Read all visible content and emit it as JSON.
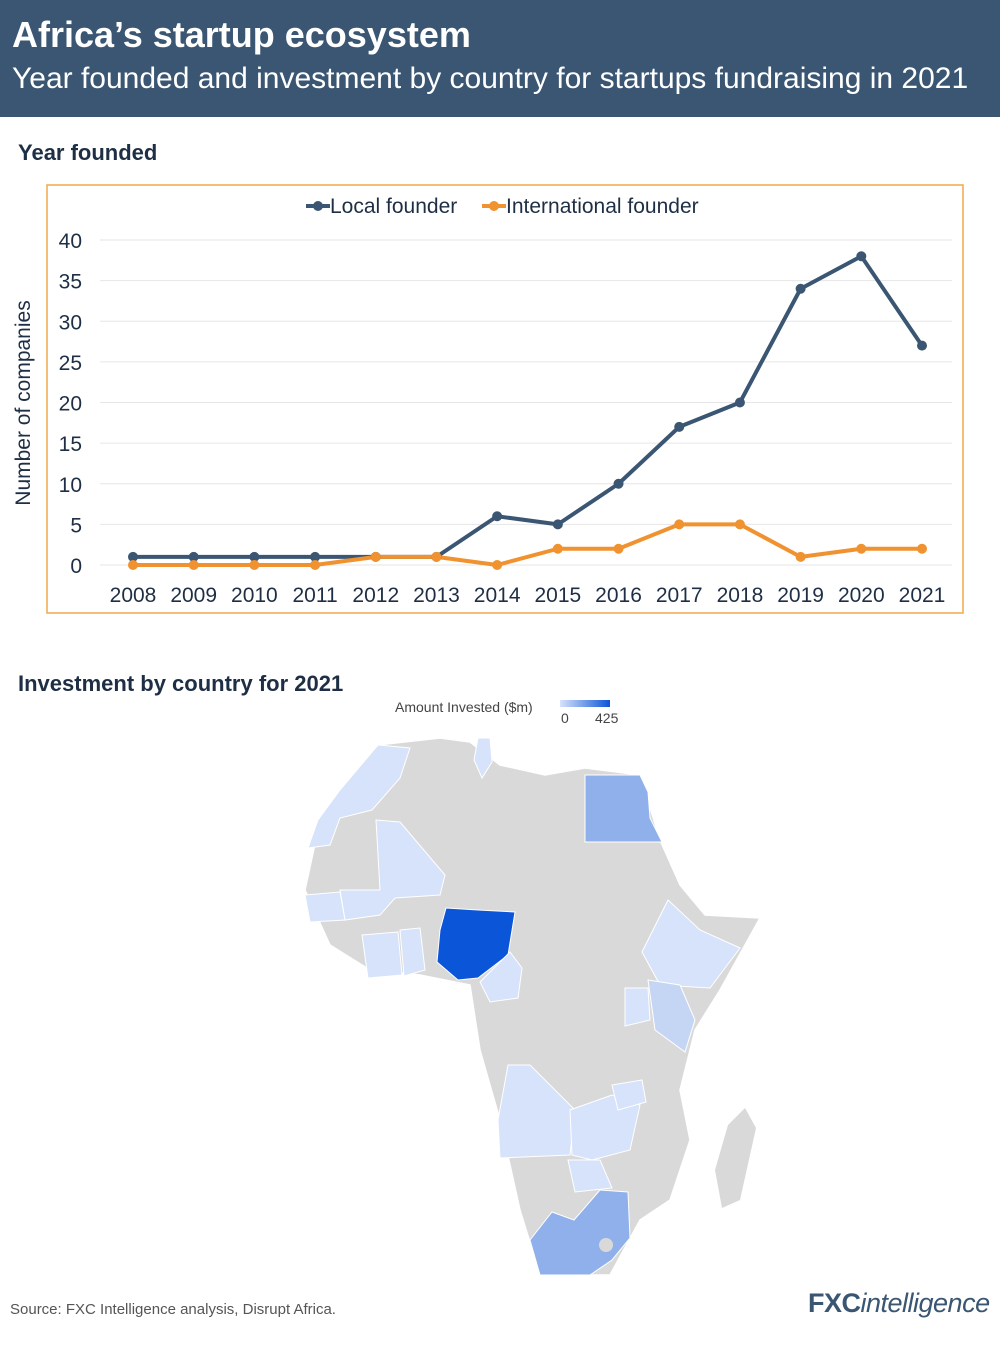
{
  "header": {
    "title": "Africa’s startup ecosystem",
    "subtitle": "Year founded and investment by country for startups fundraising in 2021"
  },
  "section1_title": "Year founded",
  "section2_title": "Investment by country for 2021",
  "colors": {
    "header_bg": "#3a5673",
    "local": "#3a5673",
    "international": "#f0922f",
    "frame": "#f0a94a",
    "map_light": "#d6e3fa",
    "map_mid": "#8fb0ea",
    "map_dark": "#0b55d9",
    "map_none": "#d9d9d9"
  },
  "chart_data": {
    "type": "line",
    "title": "Year founded",
    "xlabel": "",
    "ylabel": "Number of companies",
    "ylim": [
      0,
      40
    ],
    "yticks": [
      0,
      5,
      10,
      15,
      20,
      25,
      30,
      35,
      40
    ],
    "grid": true,
    "legend_position": "top-center",
    "x": [
      "2008",
      "2009",
      "2010",
      "2011",
      "2012",
      "2013",
      "2014",
      "2015",
      "2016",
      "2017",
      "2018",
      "2019",
      "2020",
      "2021"
    ],
    "series": [
      {
        "name": "Local founder",
        "values": [
          1,
          1,
          1,
          1,
          1,
          1,
          6,
          5,
          10,
          17,
          20,
          34,
          38,
          27
        ]
      },
      {
        "name": "International founder",
        "values": [
          0,
          0,
          0,
          0,
          1,
          1,
          0,
          2,
          2,
          5,
          5,
          1,
          2,
          2
        ]
      }
    ]
  },
  "map": {
    "legend_title": "Amount Invested ($m)",
    "legend_min": "0",
    "legend_max": "425",
    "highlighted": [
      {
        "country": "Nigeria",
        "level": "dark"
      },
      {
        "country": "Egypt",
        "level": "mid"
      },
      {
        "country": "South Africa",
        "level": "mid"
      },
      {
        "country": "Kenya",
        "level": "light"
      },
      {
        "country": "Morocco",
        "level": "light"
      },
      {
        "country": "Tunisia",
        "level": "light"
      },
      {
        "country": "Mali",
        "level": "light"
      },
      {
        "country": "Senegal",
        "level": "light"
      },
      {
        "country": "Ghana",
        "level": "light"
      },
      {
        "country": "Côte d'Ivoire",
        "level": "light"
      },
      {
        "country": "Cameroon",
        "level": "light"
      },
      {
        "country": "Ethiopia",
        "level": "light"
      },
      {
        "country": "Uganda",
        "level": "light"
      },
      {
        "country": "Rwanda",
        "level": "light"
      },
      {
        "country": "Angola",
        "level": "light"
      },
      {
        "country": "Zambia",
        "level": "light"
      },
      {
        "country": "Malawi",
        "level": "light"
      },
      {
        "country": "Zimbabwe",
        "level": "light"
      }
    ]
  },
  "footer": {
    "source": "Source: FXC Intelligence analysis, Disrupt Africa.",
    "logo_bold": "FXC",
    "logo_light": "intelligence"
  }
}
